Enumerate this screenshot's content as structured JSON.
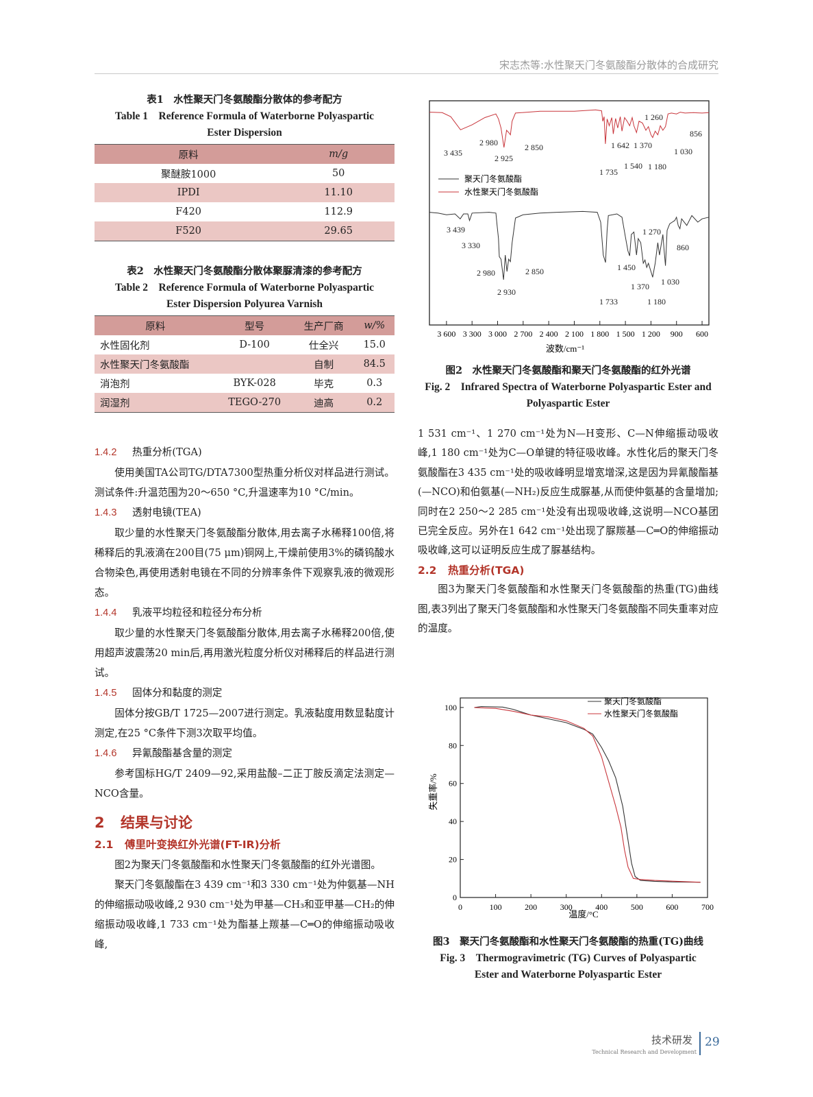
{
  "header": {
    "running_title": "宋志杰等:水性聚天门冬氨酸酯分散体的合成研究"
  },
  "table1": {
    "title_cn": "表1　水性聚天门冬氨酸酯分散体的参考配方",
    "title_en": "Table 1　Reference Formula of Waterborne Polyaspartic Ester Dispersion",
    "columns": [
      "原料",
      "m/g"
    ],
    "rows": [
      [
        "聚醚胺1000",
        "50"
      ],
      [
        "IPDI",
        "11.10"
      ],
      [
        "F420",
        "112.9"
      ],
      [
        "F520",
        "29.65"
      ]
    ]
  },
  "table2": {
    "title_cn": "表2　水性聚天门冬氨酸酯分散体聚脲清漆的参考配方",
    "title_en": "Table 2　Reference Formula of Waterborne Polyaspartic Ester Dispersion Polyurea Varnish",
    "columns": [
      "原料",
      "型号",
      "生产厂商",
      "w/%"
    ],
    "rows": [
      [
        "水性固化剂",
        "D-100",
        "仕全兴",
        "15.0"
      ],
      [
        "水性聚天门冬氨酸酯",
        "",
        "自制",
        "84.5"
      ],
      [
        "消泡剂",
        "BYK-028",
        "毕克",
        "0.3"
      ],
      [
        "润湿剂",
        "TEGO-270",
        "迪高",
        "0.2"
      ]
    ]
  },
  "left": {
    "s142": {
      "num": "1.4.2",
      "title": "热重分析(TGA)",
      "text": "使用美国TA公司TG/DTA7300型热重分析仪对样品进行测试。测试条件:升温范围为20～650 °C,升温速率为10 °C/min。"
    },
    "s143": {
      "num": "1.4.3",
      "title": "透射电镜(TEA)",
      "text": "取少量的水性聚天门冬氨酸酯分散体,用去离子水稀释100倍,将稀释后的乳液滴在200目(75 μm)铜网上,干燥前使用3%的磷钨酸水合物染色,再使用透射电镜在不同的分辨率条件下观察乳液的微观形态。"
    },
    "s144": {
      "num": "1.4.4",
      "title": "乳液平均粒径和粒径分布分析",
      "text": "取少量的水性聚天门冬氨酸酯分散体,用去离子水稀释200倍,使用超声波震荡20 min后,再用激光粒度分析仪对稀释后的样品进行测试。"
    },
    "s145": {
      "num": "1.4.5",
      "title": "固体分和黏度的测定",
      "text": "固体分按GB/T 1725—2007进行测定。乳液黏度用数显黏度计测定,在25 °C条件下测3次取平均值。"
    },
    "s146": {
      "num": "1.4.6",
      "title": "异氰酸酯基含量的测定",
      "text": "参考国标HG/T 2409—92,采用盐酸–二正丁胺反滴定法测定—NCO含量。"
    },
    "s2": {
      "num": "2",
      "title": "结果与讨论"
    },
    "s21": {
      "num": "2.1",
      "title": "傅里叶变换红外光谱(FT-IR)分析",
      "p1": "图2为聚天门冬氨酸酯和水性聚天门冬氨酸酯的红外光谱图。",
      "p2": "聚天门冬氨酸酯在3 439 cm⁻¹和3 330 cm⁻¹处为仲氨基—NH的伸缩振动吸收峰,2 930 cm⁻¹处为甲基—CH₃和亚甲基—CH₂的伸缩振动吸收峰,1 733 cm⁻¹处为酯基上羰基—C═O的伸缩振动吸收峰,"
    }
  },
  "right": {
    "p_cont": "1 531 cm⁻¹、1 270 cm⁻¹处为N—H变形、C—N伸缩振动吸收峰,1 180 cm⁻¹处为C—O单键的特征吸收峰。水性化后的聚天门冬氨酸酯在3 435 cm⁻¹处的吸收峰明显增宽增深,这是因为异氰酸酯基(—NCO)和伯氨基(—NH₂)反应生成脲基,从而使仲氨基的含量增加;同时在2 250～2 285 cm⁻¹处没有出现吸收峰,这说明—NCO基团已完全反应。另外在1 642 cm⁻¹处出现了脲羰基—C═O的伸缩振动吸收峰,这可以证明反应生成了脲基结构。",
    "s22": {
      "num": "2.2",
      "title": "热重分析(TGA)",
      "p1": "图3为聚天门冬氨酸酯和水性聚天门冬氨酸酯的热重(TG)曲线图,表3列出了聚天门冬氨酸酯和水性聚天门冬氨酸酯不同失重率对应的温度。"
    }
  },
  "fig2": {
    "caption_cn": "图2　水性聚天门冬氨酸酯和聚天门冬氨酸酯的红外光谱",
    "caption_en": "Fig. 2　Infrared Spectra of Waterborne Polyaspartic Ester and Polyaspartic Ester"
  },
  "fig3": {
    "caption_cn": "图3　聚天门冬氨酸酯和水性聚天门冬氨酸酯的热重(TG)曲线",
    "caption_en": "Fig. 3　Thermogravimetric (TG) Curves of Polyaspartic Ester and Waterborne Polyaspartic Ester"
  },
  "chart_data": [
    {
      "type": "line",
      "xlabel": "波数/cm⁻¹",
      "xlim": [
        3800,
        520
      ],
      "x_reversed": true,
      "xticks": [
        "3 600",
        "3 300",
        "3 000",
        "2 700",
        "2 400",
        "2 100",
        "1 800",
        "1 500",
        "1 200",
        "900",
        "600"
      ],
      "xtick_values": [
        3600,
        3300,
        3000,
        2700,
        2400,
        2100,
        1800,
        1500,
        1200,
        900,
        600
      ],
      "y_axis_shown": false,
      "legend": "middle-left",
      "series": [
        {
          "name": "水性聚天门冬氨酸酯",
          "color": "#c8343a",
          "points": [
            [
              3800,
              90
            ],
            [
              3650,
              89
            ],
            [
              3550,
              80
            ],
            [
              3435,
              51
            ],
            [
              3300,
              62
            ],
            [
              3150,
              78
            ],
            [
              3020,
              86
            ],
            [
              2990,
              75
            ],
            [
              2960,
              55
            ],
            [
              2925,
              12
            ],
            [
              2895,
              50
            ],
            [
              2870,
              45
            ],
            [
              2850,
              40
            ],
            [
              2830,
              70
            ],
            [
              2790,
              88
            ],
            [
              2500,
              92
            ],
            [
              2100,
              92
            ],
            [
              1850,
              95
            ],
            [
              1780,
              93
            ],
            [
              1765,
              70
            ],
            [
              1750,
              80
            ],
            [
              1735,
              20
            ],
            [
              1715,
              75
            ],
            [
              1690,
              60
            ],
            [
              1660,
              78
            ],
            [
              1642,
              42
            ],
            [
              1615,
              76
            ],
            [
              1590,
              55
            ],
            [
              1560,
              80
            ],
            [
              1540,
              48
            ],
            [
              1510,
              78
            ],
            [
              1480,
              70
            ],
            [
              1450,
              60
            ],
            [
              1420,
              78
            ],
            [
              1400,
              60
            ],
            [
              1370,
              45
            ],
            [
              1340,
              70
            ],
            [
              1300,
              66
            ],
            [
              1260,
              50
            ],
            [
              1230,
              58
            ],
            [
              1200,
              40
            ],
            [
              1180,
              34
            ],
            [
              1150,
              48
            ],
            [
              1120,
              40
            ],
            [
              1090,
              60
            ],
            [
              1060,
              50
            ],
            [
              1030,
              58
            ],
            [
              1000,
              86
            ],
            [
              960,
              88
            ],
            [
              900,
              86
            ],
            [
              856,
              90
            ],
            [
              800,
              88
            ],
            [
              700,
              89
            ],
            [
              600,
              88
            ],
            [
              520,
              89
            ]
          ]
        },
        {
          "name": "聚天门冬氨酸酯",
          "color": "#333333",
          "points": [
            [
              3800,
              92
            ],
            [
              3700,
              91
            ],
            [
              3600,
              89
            ],
            [
              3500,
              90
            ],
            [
              3439,
              84
            ],
            [
              3400,
              90
            ],
            [
              3350,
              90
            ],
            [
              3330,
              82
            ],
            [
              3300,
              91
            ],
            [
              3100,
              92
            ],
            [
              3020,
              91
            ],
            [
              3005,
              75
            ],
            [
              2990,
              60
            ],
            [
              2980,
              38
            ],
            [
              2960,
              35
            ],
            [
              2930,
              10
            ],
            [
              2910,
              40
            ],
            [
              2890,
              20
            ],
            [
              2870,
              35
            ],
            [
              2850,
              32
            ],
            [
              2830,
              55
            ],
            [
              2790,
              85
            ],
            [
              2700,
              89
            ],
            [
              2500,
              91
            ],
            [
              2300,
              92
            ],
            [
              2000,
              93
            ],
            [
              1830,
              92
            ],
            [
              1790,
              80
            ],
            [
              1760,
              40
            ],
            [
              1733,
              31
            ],
            [
              1715,
              70
            ],
            [
              1700,
              88
            ],
            [
              1600,
              90
            ],
            [
              1540,
              86
            ],
            [
              1500,
              62
            ],
            [
              1470,
              45
            ],
            [
              1450,
              39
            ],
            [
              1430,
              65
            ],
            [
              1400,
              68
            ],
            [
              1380,
              50
            ],
            [
              1370,
              40
            ],
            [
              1350,
              60
            ],
            [
              1320,
              55
            ],
            [
              1290,
              30
            ],
            [
              1270,
              34
            ],
            [
              1250,
              25
            ],
            [
              1230,
              30
            ],
            [
              1200,
              20
            ],
            [
              1180,
              13
            ],
            [
              1150,
              30
            ],
            [
              1120,
              55
            ],
            [
              1100,
              40
            ],
            [
              1060,
              65
            ],
            [
              1045,
              45
            ],
            [
              1030,
              27
            ],
            [
              1010,
              70
            ],
            [
              980,
              78
            ],
            [
              950,
              80
            ],
            [
              920,
              82
            ],
            [
              900,
              86
            ],
            [
              880,
              76
            ],
            [
              860,
              72
            ],
            [
              840,
              84
            ],
            [
              780,
              76
            ],
            [
              720,
              88
            ],
            [
              650,
              80
            ],
            [
              600,
              84
            ],
            [
              520,
              86
            ]
          ]
        }
      ],
      "annotations": {
        "red": [
          "3 435",
          "2 980",
          "2 925",
          "2 850",
          "1 735",
          "1 642",
          "1 540",
          "1 370",
          "1 260",
          "1 180",
          "1 030",
          "856"
        ],
        "black": [
          "3 439",
          "3 330",
          "2 980",
          "2 930",
          "2 850",
          "1 733",
          "1 450",
          "1 370",
          "1 270",
          "1 180",
          "1 030",
          "860"
        ]
      }
    },
    {
      "type": "line",
      "xlabel": "温度/°C",
      "ylabel": "失重率/%",
      "xlim": [
        0,
        700
      ],
      "ylim": [
        0,
        105
      ],
      "xticks": [
        0,
        100,
        200,
        300,
        400,
        500,
        600,
        700
      ],
      "yticks": [
        0,
        20,
        40,
        60,
        80,
        100
      ],
      "legend": "top-right",
      "series": [
        {
          "name": "聚天门冬氨酸酯",
          "color": "#333333",
          "points": [
            [
              40,
              100
            ],
            [
              60,
              100.5
            ],
            [
              120,
              100.2
            ],
            [
              150,
              99
            ],
            [
              200,
              96
            ],
            [
              250,
              94
            ],
            [
              300,
              92
            ],
            [
              350,
              88.5
            ],
            [
              375,
              86
            ],
            [
              400,
              79
            ],
            [
              420,
              72
            ],
            [
              440,
              63
            ],
            [
              460,
              48
            ],
            [
              475,
              30
            ],
            [
              485,
              18
            ],
            [
              495,
              11
            ],
            [
              510,
              9
            ],
            [
              550,
              8.5
            ],
            [
              600,
              8.2
            ],
            [
              680,
              8
            ]
          ]
        },
        {
          "name": "水性聚天门冬氨酸酯",
          "color": "#c8343a",
          "points": [
            [
              40,
              100
            ],
            [
              100,
              99.5
            ],
            [
              150,
              98
            ],
            [
              200,
              96
            ],
            [
              250,
              95
            ],
            [
              300,
              93
            ],
            [
              350,
              89
            ],
            [
              375,
              85
            ],
            [
              400,
              74
            ],
            [
              420,
              61
            ],
            [
              440,
              48
            ],
            [
              455,
              37
            ],
            [
              465,
              25
            ],
            [
              475,
              16
            ],
            [
              490,
              10
            ],
            [
              510,
              9.5
            ],
            [
              550,
              9
            ],
            [
              600,
              8.6
            ],
            [
              680,
              8
            ]
          ]
        }
      ]
    }
  ],
  "footer": {
    "section_cn": "技术研发",
    "section_en": "Technical Research and Development",
    "page_number": "29"
  }
}
